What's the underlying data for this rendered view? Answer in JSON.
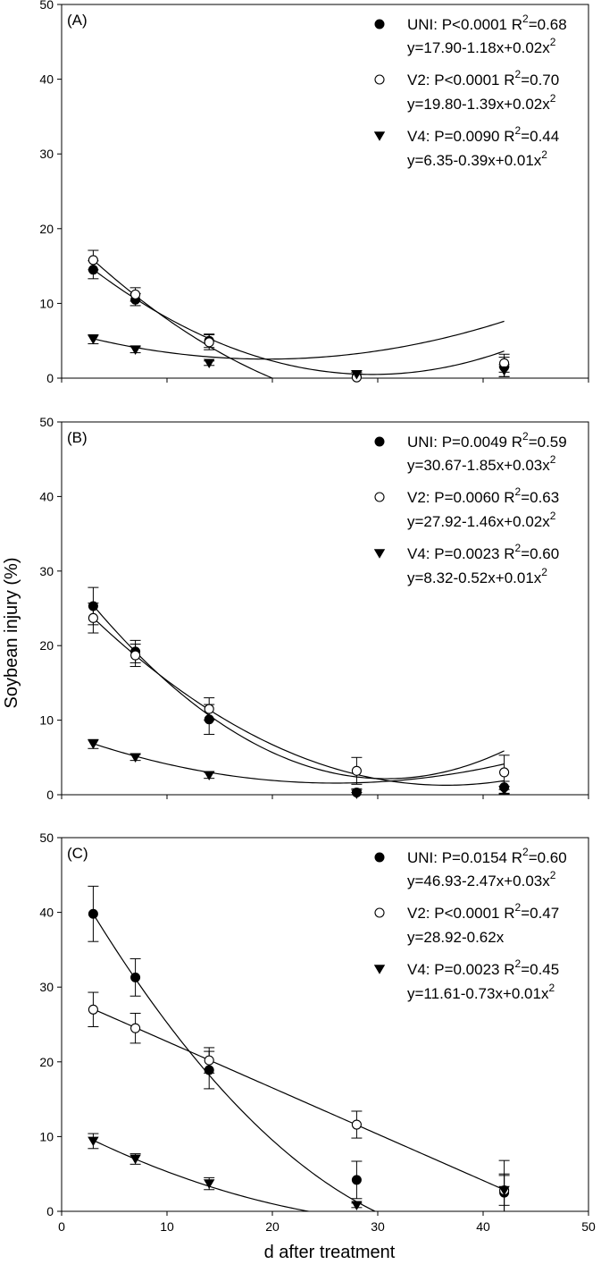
{
  "figure": {
    "ylabel": "Soybean injury (%)",
    "xlabel": "d after treatment"
  },
  "chart_data": [
    {
      "type": "scatter",
      "panel_label": "(A)",
      "x": [
        3,
        7,
        14,
        28,
        42
      ],
      "xlim": [
        0,
        50
      ],
      "ylim": [
        0,
        50
      ],
      "xticks": [
        "0",
        "10",
        "20",
        "30",
        "40",
        "50"
      ],
      "yticks": [
        "0",
        "10",
        "20",
        "30",
        "40",
        "50"
      ],
      "show_xtick_labels": false,
      "series": [
        {
          "name": "UNI",
          "marker": "filled-circle",
          "values": [
            14.5,
            10.5,
            5.0,
            0.2,
            1.5
          ],
          "errors": [
            1.2,
            0.8,
            0.9,
            0.6,
            1.3
          ],
          "fit": [
            17.9,
            -1.18,
            0.02
          ],
          "stat": "UNI: P<0.0001",
          "r2": "=0.68",
          "equation": "y=17.90-1.18x+0.02x",
          "eq_sup": "2"
        },
        {
          "name": "V2",
          "marker": "open-circle",
          "values": [
            15.8,
            11.2,
            4.8,
            0.1,
            2.0
          ],
          "errors": [
            1.3,
            0.9,
            1.0,
            0.5,
            1.2
          ],
          "fit": [
            19.8,
            -1.39,
            0.02
          ],
          "stat": "V2: P<0.0001",
          "r2": "=0.70",
          "equation": "y=19.80-1.39x+0.02x",
          "eq_sup": "2"
        },
        {
          "name": "V4",
          "marker": "filled-triangle-down",
          "values": [
            5.2,
            3.8,
            2.0,
            0.5,
            1.0
          ],
          "errors": [
            0.6,
            0.4,
            0.3,
            0.5,
            0.8
          ],
          "fit": [
            6.35,
            -0.39,
            0.01
          ],
          "stat": "V4: P=0.0090",
          "r2": "=0.44",
          "equation": "y=6.35-0.39x+0.01x",
          "eq_sup": "2"
        }
      ]
    },
    {
      "type": "scatter",
      "panel_label": "(B)",
      "x": [
        3,
        7,
        14,
        28,
        42
      ],
      "xlim": [
        0,
        50
      ],
      "ylim": [
        0,
        50
      ],
      "xticks": [
        "0",
        "10",
        "20",
        "30",
        "40",
        "50"
      ],
      "yticks": [
        "0",
        "10",
        "20",
        "30",
        "40",
        "50"
      ],
      "show_xtick_labels": false,
      "series": [
        {
          "name": "UNI",
          "marker": "filled-circle",
          "values": [
            25.3,
            19.2,
            10.1,
            0.3,
            1.0
          ],
          "errors": [
            2.5,
            1.5,
            2.0,
            0.5,
            0.8
          ],
          "fit": [
            30.67,
            -1.85,
            0.03
          ],
          "stat": "UNI: P=0.0049",
          "r2": "=0.59",
          "equation": "y=30.67-1.85x+0.03x",
          "eq_sup": "2"
        },
        {
          "name": "V2",
          "marker": "open-circle",
          "values": [
            23.7,
            18.7,
            11.5,
            3.2,
            3.0
          ],
          "errors": [
            2.0,
            1.5,
            1.5,
            1.8,
            2.3
          ],
          "fit": [
            27.92,
            -1.46,
            0.02
          ],
          "stat": "V2: P=0.0060",
          "r2": "=0.63",
          "equation": "y=27.92-1.46x+0.02x",
          "eq_sup": "2"
        },
        {
          "name": "V4",
          "marker": "filled-triangle-down",
          "values": [
            6.8,
            5.0,
            2.6,
            0.1,
            0.6
          ],
          "errors": [
            0.6,
            0.4,
            0.4,
            0.2,
            0.5
          ],
          "fit": [
            8.32,
            -0.52,
            0.01
          ],
          "stat": "V4: P=0.0023",
          "r2": "=0.60",
          "equation": "y=8.32-0.52x+0.01x",
          "eq_sup": "2"
        }
      ]
    },
    {
      "type": "scatter",
      "panel_label": "(C)",
      "x": [
        3,
        7,
        14,
        28,
        42
      ],
      "xlim": [
        0,
        50
      ],
      "ylim": [
        0,
        50
      ],
      "xticks": [
        "0",
        "10",
        "20",
        "30",
        "40",
        "50"
      ],
      "yticks": [
        "0",
        "10",
        "20",
        "30",
        "40",
        "50"
      ],
      "show_xtick_labels": true,
      "series": [
        {
          "name": "UNI",
          "marker": "filled-circle",
          "values": [
            39.8,
            31.3,
            18.9,
            4.2,
            2.5
          ],
          "errors": [
            3.7,
            2.5,
            2.5,
            2.5,
            2.5
          ],
          "fit": [
            46.93,
            -2.47,
            0.03
          ],
          "stat": "UNI: P=0.0154",
          "r2": "=0.60",
          "equation": "y=46.93-2.47x+0.03x",
          "eq_sup": "2"
        },
        {
          "name": "V2",
          "marker": "open-circle",
          "values": [
            27.0,
            24.5,
            20.2,
            11.6,
            2.8
          ],
          "errors": [
            2.3,
            2.0,
            1.7,
            1.8,
            4.0
          ],
          "fit": [
            28.92,
            -0.62,
            0
          ],
          "stat": "V2: P<0.0001",
          "r2": "=0.47",
          "equation": "y=28.92-0.62x",
          "eq_sup": ""
        },
        {
          "name": "V4",
          "marker": "filled-triangle-down",
          "values": [
            9.4,
            7.0,
            3.7,
            0.8,
            2.8
          ],
          "errors": [
            1.0,
            0.7,
            0.8,
            0.3,
            2.0
          ],
          "fit": [
            11.61,
            -0.73,
            0.01
          ],
          "stat": "V4: P=0.0023",
          "r2": "=0.45",
          "equation": "y=11.61-0.73x+0.01x",
          "eq_sup": "2"
        }
      ]
    }
  ]
}
